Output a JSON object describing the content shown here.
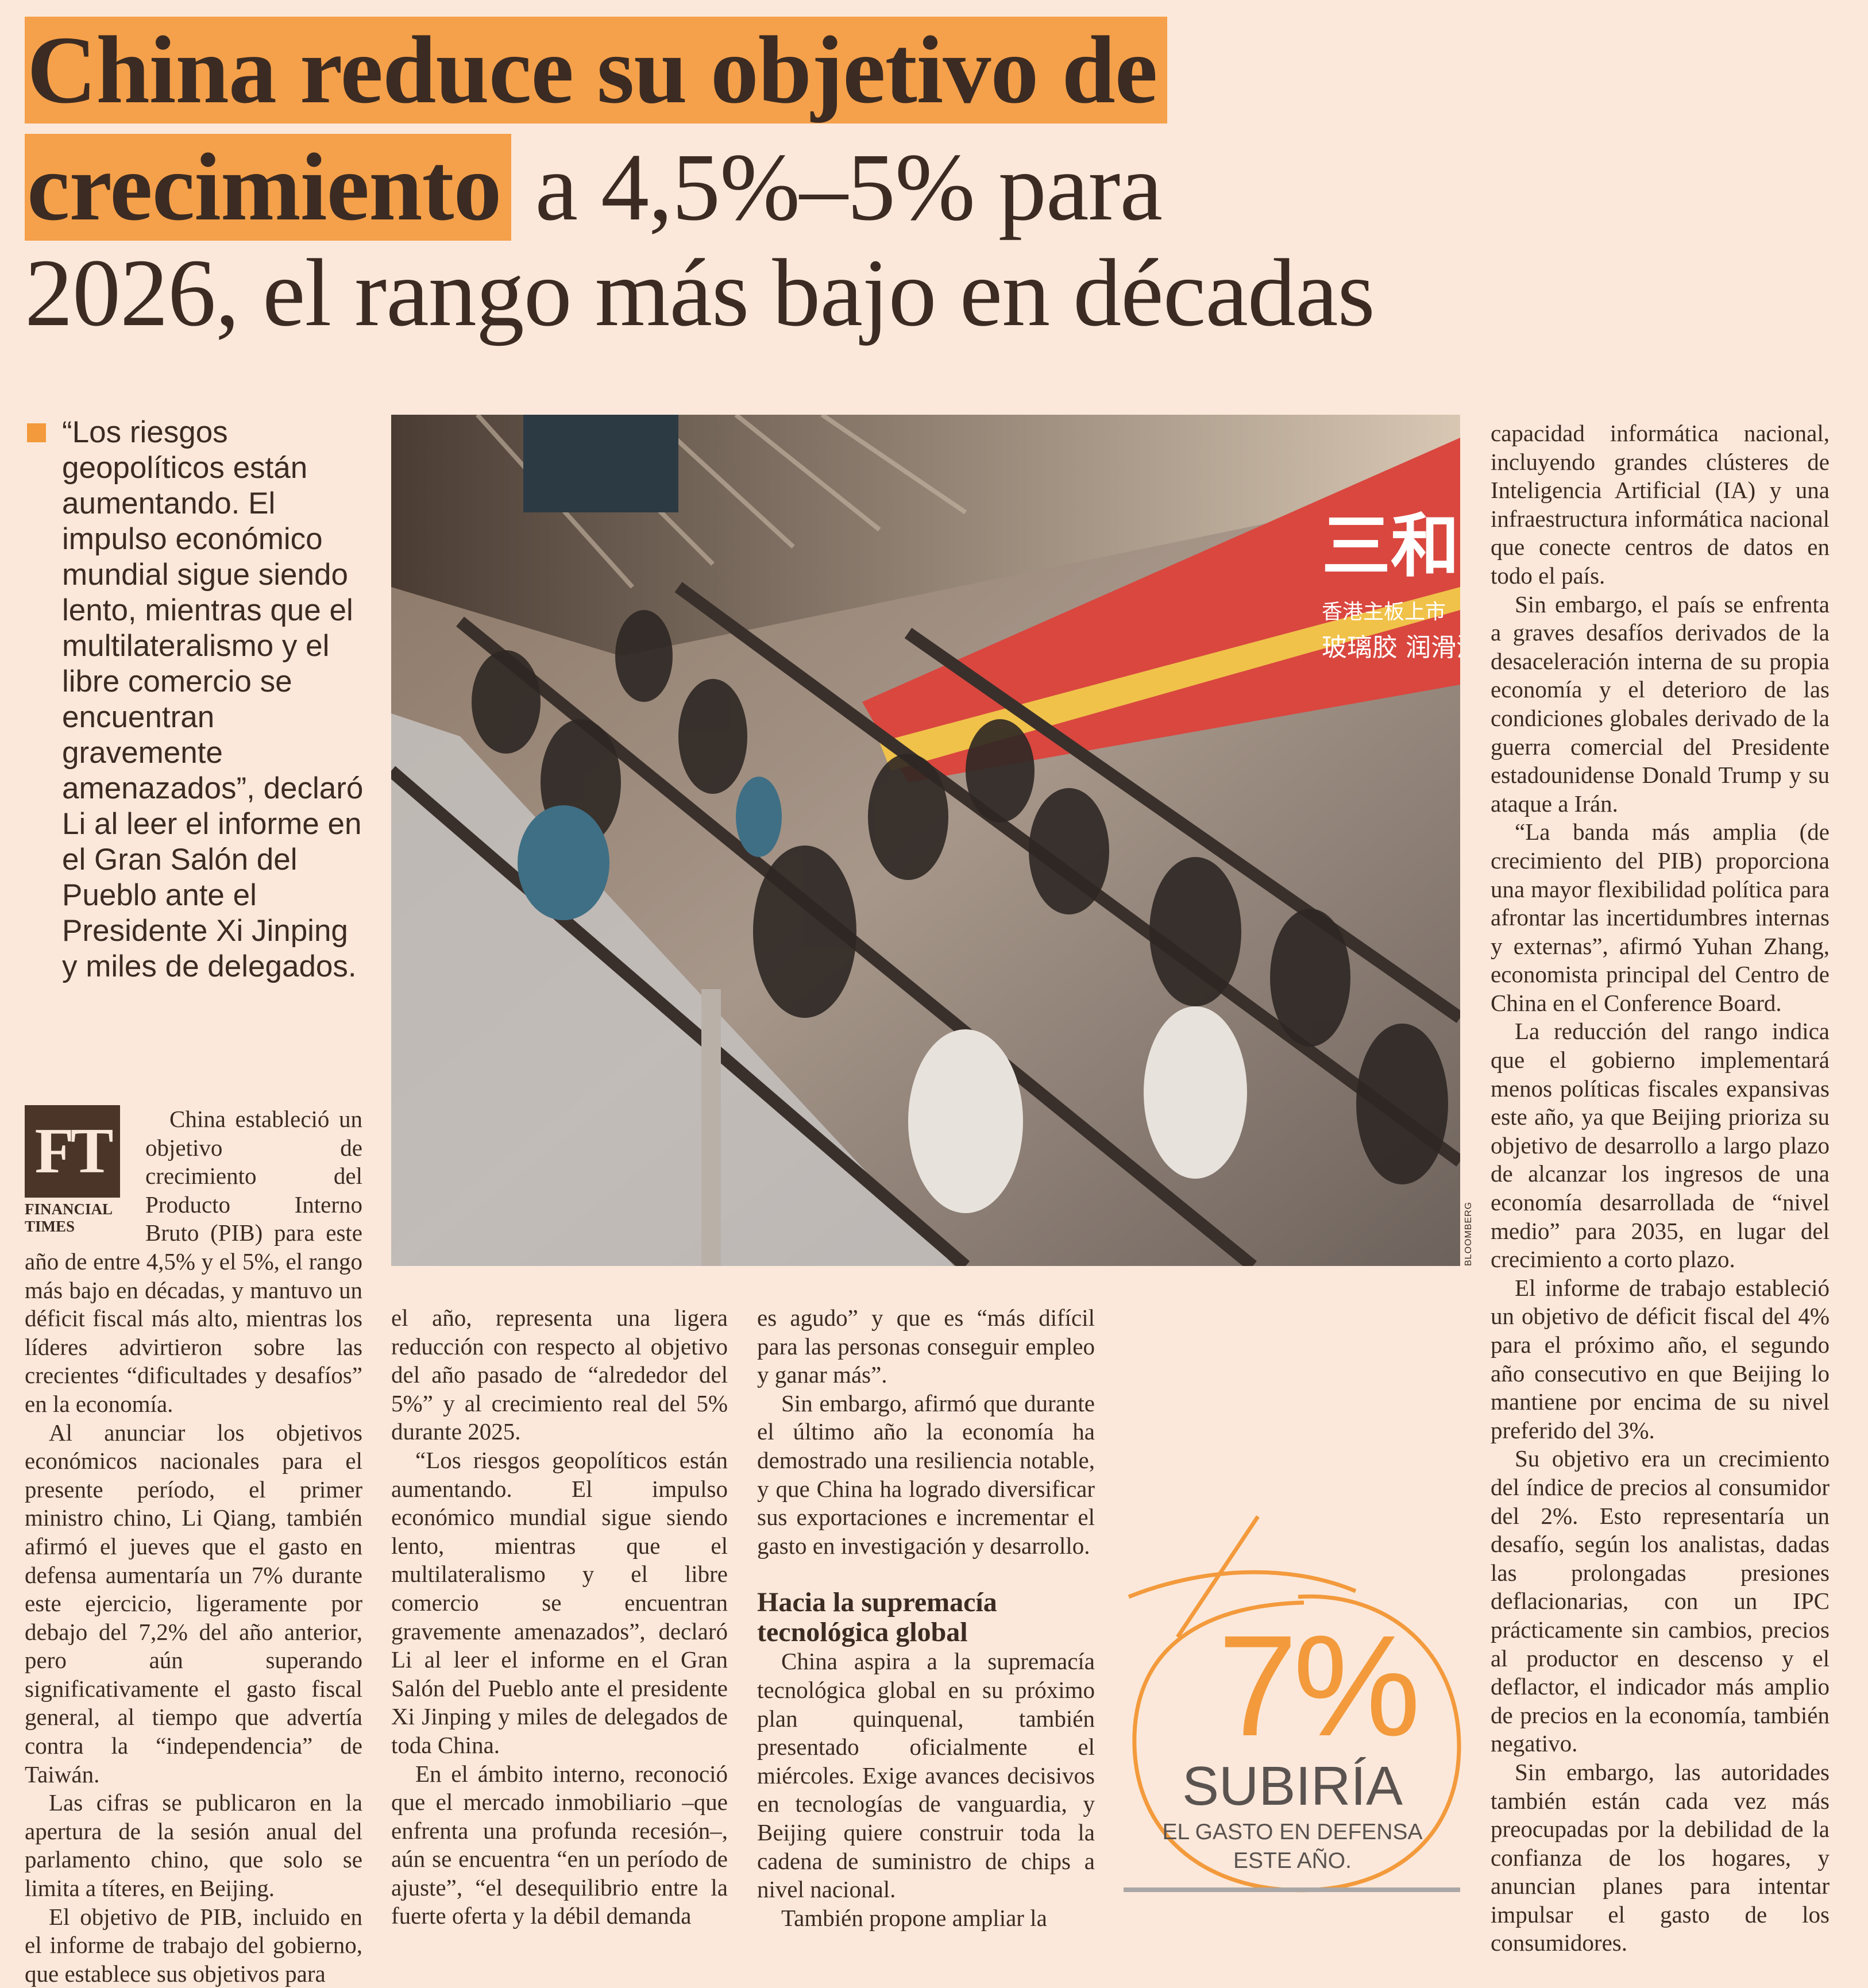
{
  "headline": {
    "highlight_1": "China reduce su objetivo de",
    "highlight_2": "crecimiento",
    "rest_2": " a 4,5%–5% para",
    "line_3": "2026, el rango más bajo en décadas"
  },
  "pullquote": "“Los riesgos geopolíticos están aumentando. El impulso económico mundial sigue siendo lento, mientras que el multilateralismo y el libre comercio se encuentran gravemente amenazados”, declaró Li al leer el informe en el Gran Salón del Pueblo ante el Presidente Xi Jinping y miles de delegados.",
  "photo": {
    "credit": "BLOOMBERG",
    "sign_text_1": "三和",
    "sign_text_2": "香港主板上市",
    "sign_text_3": "玻璃胶 润滑油"
  },
  "source": {
    "logo": "FT",
    "name": "FINANCIAL TIMES"
  },
  "colors": {
    "accent": "#f39a3c",
    "background": "#fbe8da",
    "text": "#3b2b22"
  },
  "columns": {
    "col1": [
      "China estableció un objetivo de crecimiento del Producto Interno Bruto (PIB) para este año de entre 4,5% y el 5%, el rango más bajo en décadas, y mantuvo un déficit fiscal más alto, mientras los líderes advirtieron sobre las crecientes “dificultades y desafíos” en la economía.",
      "Al anunciar los objetivos económicos nacionales para el presente período, el primer ministro chino, Li Qiang, también afirmó el jueves que el gasto en defensa aumentaría un 7% durante este ejercicio, ligeramente por debajo del 7,2% del año anterior, pero aún superando significativamente el gasto fiscal general, al tiempo que advertía contra la “independencia” de Taiwán.",
      "Las cifras se publicaron en la apertura de la sesión anual del parlamento chino, que solo se limita a títeres, en Beijing.",
      "El objetivo de PIB, incluido en el informe de trabajo del gobierno, que establece sus objetivos para"
    ],
    "col2": [
      "el año, representa una ligera reducción con respecto al objetivo del año pasado de “alrededor del 5%” y al crecimiento real del 5% durante 2025.",
      "“Los riesgos geopolíticos están aumentando. El impulso económico mundial sigue siendo lento, mientras que el multilateralismo y el libre comercio se encuentran gravemente amenazados”, declaró Li al leer el informe en el Gran Salón del Pueblo ante el presidente Xi Jinping y miles de delegados de toda China.",
      "En el ámbito interno, reconoció que el mercado inmobiliario –que enfrenta una profunda recesión–, aún se encuentra “en un período de ajuste”, “el desequilibrio entre la fuerte oferta y la débil demanda"
    ],
    "col3": [
      "es agudo” y que es “más difícil para las personas conseguir empleo y ganar más”.",
      "Sin embargo, afirmó que durante el último año la economía ha demostrado una resiliencia notable, y que China ha logrado diversificar sus exportaciones e incrementar el gasto en investigación y desarrollo."
    ],
    "col3_subhead": "Hacia la supremacía tecnológica global",
    "col3_after": [
      "China aspira a la supremacía tecnológica global en su próximo plan quinquenal, también presentado oficialmente el miércoles. Exige avances decisivos en tecnologías de vanguardia, y Beijing quiere construir toda la cadena de suministro de chips a nivel nacional.",
      "También propone ampliar la"
    ],
    "col4": [
      "capacidad informática nacional, incluyendo grandes clústeres de Inteligencia Artificial (IA) y una infraestructura informática nacional que conecte centros de datos en todo el país.",
      "Sin embargo, el país se enfrenta a graves desafíos derivados de la desaceleración interna de su propia economía y el deterioro de las condiciones globales derivado de la guerra comercial del Presidente estadounidense Donald Trump y su ataque a Irán.",
      "“La banda más amplia (de crecimiento del PIB) proporciona una mayor flexibilidad política para afrontar las incertidumbres internas y externas”, afirmó Yuhan Zhang, economista principal del Centro de China en el Conference Board.",
      "La reducción del rango indica que el gobierno implementará menos políticas fiscales expansivas este año, ya que Beijing prioriza su objetivo de desarrollo a largo plazo de alcanzar los ingresos de una economía desarrollada de “nivel medio” para 2035, en lugar del crecimiento a corto plazo.",
      "El informe de trabajo estableció un objetivo de déficit fiscal del 4% para el próximo año, el segundo año consecutivo en que Beijing lo mantiene por encima de su nivel preferido del 3%.",
      "Su objetivo era un crecimiento del índice de precios al consumidor del 2%. Esto representaría un desafío, según los analistas, dadas las prolongadas presiones deflacionarias, con un IPC prácticamente sin cambios, precios al productor en descenso y el deflactor, el indicador más amplio de precios en la economía, también negativo.",
      "Sin embargo, las autoridades también están cada vez más preocupadas por la debilidad de la confianza de los hogares, y anuncian planes para intentar impulsar el gasto de los consumidores."
    ]
  },
  "callout": {
    "figure": "7%",
    "verb": "SUBIRÍA",
    "caption": "EL GASTO EN DEFENSA ESTE AÑO."
  }
}
